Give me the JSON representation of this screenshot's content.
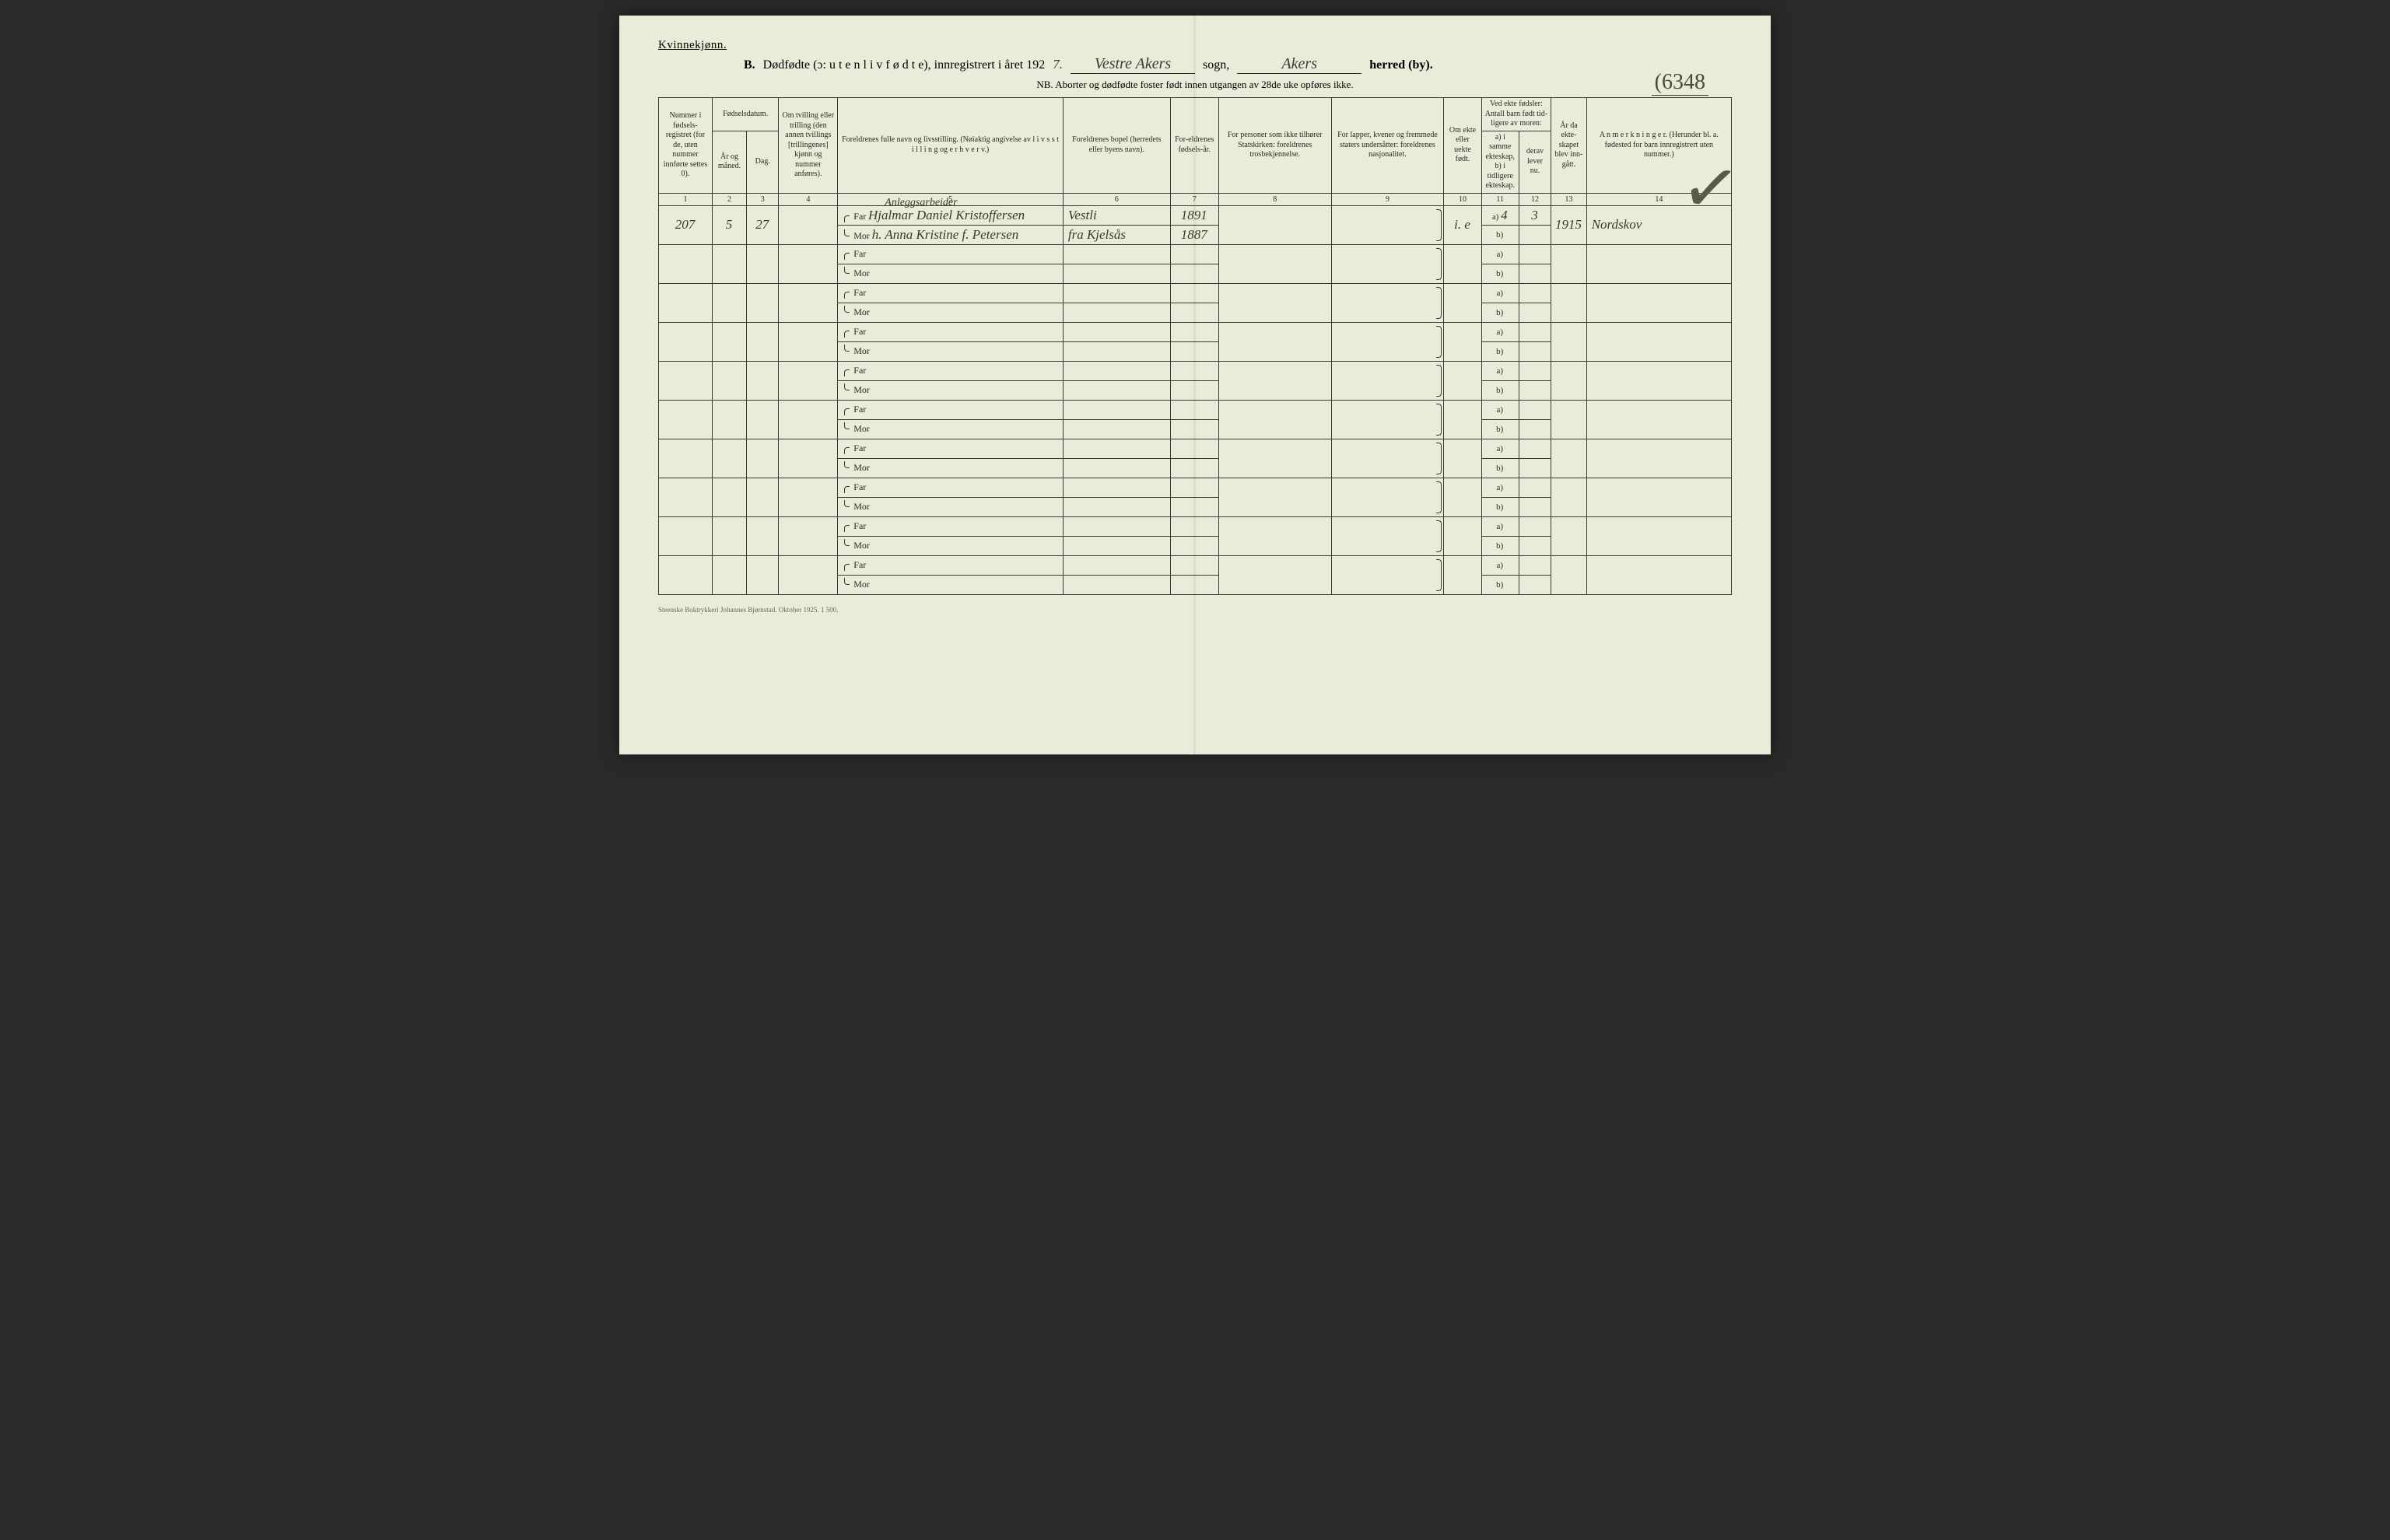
{
  "page": {
    "gender_heading": "Kvinnekjønn.",
    "section_letter": "B.",
    "title_main": "Dødfødte (ɔ: u t e n  l i v  f ø d t e), innregistrert i året 192",
    "year_suffix": "7.",
    "sogn_value": "Vestre Akers",
    "sogn_label": "sogn,",
    "herred_value": "Akers",
    "herred_label": "herred (by).",
    "nb_line": "NB.  Aborter og dødfødte foster født innen utgangen av 28de uke opføres ikke.",
    "page_number_hw": "6348",
    "footer": "Steenske Boktrykkeri Johannes Bjørnstad.  Oktober 1925.   1 500."
  },
  "headers": {
    "c1": "Nummer i fødsels-registret (for de, uten nummer innførte settes 0).",
    "c2_top": "Fødselsdatum.",
    "c2a": "År og måned.",
    "c2b": "Dag.",
    "c3": "Om tvilling eller trilling (den annen tvillings [trillingenes] kjønn og nummer anføres).",
    "c5": "Foreldrenes fulle navn og livsstilling. (Nøiaktig angivelse av l i v s s t i l l i n g  og  e r h v e r v.)",
    "c6": "Foreldrenes bopel (herredets eller byens navn).",
    "c7": "For-eldrenes fødsels-år.",
    "c8": "For personer som ikke tilhører Statskirken: foreldrenes trosbekjennelse.",
    "c9": "For lapper, kvener og fremmede staters undersåtter: foreldrenes nasjonalitet.",
    "c10": "Om ekte eller uekte født.",
    "c11_top": "Ved ekte fødsler: Antall barn født tid-ligere av moren:",
    "c11a": "a) i samme ekteskap,",
    "c11b": "b) i tidligere ekteskap.",
    "c12_top": "derav lever nu.",
    "c12b": "derav lever nu.",
    "c13": "År da ekte-skapet blev inn-gått.",
    "c14": "A n m e r k n i n g e r. (Herunder bl. a. fødested for barn innregistrert uten nummer.)",
    "far": "Far",
    "mor": "Mor",
    "a_label": "a)",
    "b_label": "b)"
  },
  "colnums": [
    "1",
    "2",
    "3",
    "4",
    "5",
    "6",
    "7",
    "8",
    "9",
    "10",
    "11",
    "12",
    "13",
    "14"
  ],
  "entry": {
    "reg_no": "207",
    "month": "5",
    "day": "27",
    "occupation": "Anleggsarbeider",
    "father_name": "Hjalmar Daniel Kristoffersen",
    "mother_name": "h. Anna Kristine f. Petersen",
    "father_residence": "Vestli",
    "mother_residence": "fra Kjelsås",
    "father_birth": "1891",
    "mother_birth": "1887",
    "ekte": "i. e",
    "children_a": "4",
    "children_alive": "3",
    "marriage_year": "1915",
    "remark": "Nordskov"
  },
  "colors": {
    "paper": "#e8ecd8",
    "ink": "#2a2a20",
    "rule": "#3a3a30",
    "handwriting": "#3a3a2a",
    "background": "#2a2a2a"
  },
  "layout": {
    "num_blank_rows": 9,
    "col_widths_pct": [
      5.0,
      3.2,
      3.0,
      5.5,
      21.0,
      10.0,
      4.5,
      10.5,
      10.5,
      3.5,
      3.5,
      3.0,
      3.3,
      13.5
    ]
  }
}
